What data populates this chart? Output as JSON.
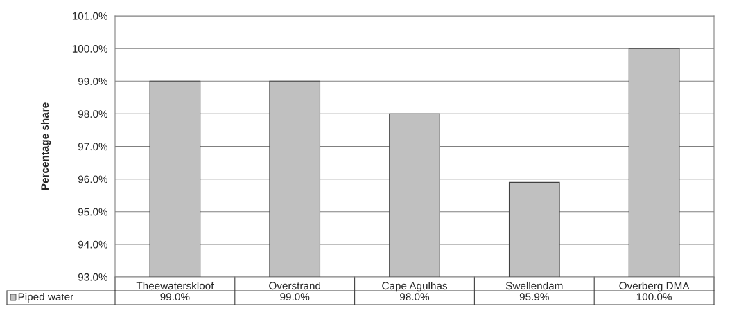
{
  "chart_data": {
    "type": "bar",
    "ylabel": "Percentage share",
    "categories": [
      "Theewaterskloof",
      "Overstrand",
      "Cape Agulhas",
      "Swellendam",
      "Overberg DMA"
    ],
    "series": [
      {
        "name": "Piped water",
        "color": "#c0c0c0",
        "values": [
          99.0,
          99.0,
          98.0,
          95.9,
          100.0
        ],
        "value_labels": [
          "99.0%",
          "99.0%",
          "98.0%",
          "95.9%",
          "100.0%"
        ]
      }
    ],
    "ylim": [
      93,
      101
    ],
    "yticks": [
      {
        "value": 93,
        "label": "93.0%"
      },
      {
        "value": 94,
        "label": "94.0%"
      },
      {
        "value": 95,
        "label": "95.0%"
      },
      {
        "value": 96,
        "label": "96.0%"
      },
      {
        "value": 97,
        "label": "97.0%"
      },
      {
        "value": 98,
        "label": "98.0%"
      },
      {
        "value": 99,
        "label": "99.0%"
      },
      {
        "value": 100,
        "label": "100.0%"
      },
      {
        "value": 101,
        "label": "101.0%"
      }
    ],
    "grid": "y",
    "legend": "bottom"
  }
}
